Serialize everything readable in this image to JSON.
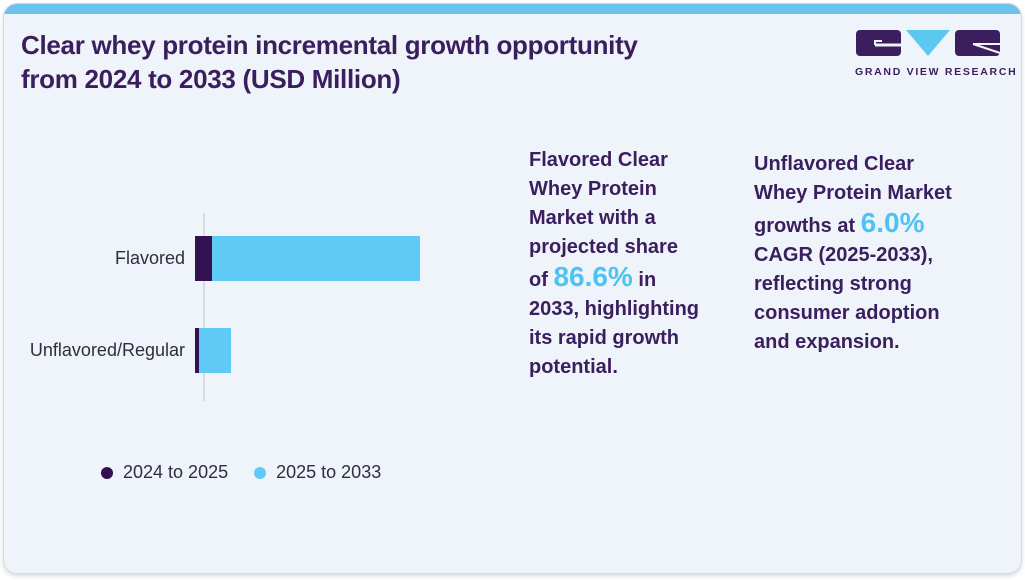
{
  "header": {
    "title_lines": [
      "Clear whey protein incremental growth opportunity",
      "from 2024 to 2033 (USD Million)"
    ]
  },
  "brand": {
    "name": "GRAND VIEW RESEARCH"
  },
  "chart_data": {
    "type": "bar",
    "orientation": "horizontal",
    "stacked": true,
    "title": "Clear whey protein incremental growth opportunity from 2024 to 2033 (USD Million)",
    "categories": [
      "Flavored",
      "Unflavored/Regular"
    ],
    "series": [
      {
        "name": "2024 to 2025",
        "color": "#341150",
        "values": [
          17,
          4
        ]
      },
      {
        "name": "2025 to 2033",
        "color": "#5ecaf5",
        "values": [
          208,
          32
        ]
      }
    ],
    "value_note": "Axis has no tick labels; values are relative bar lengths estimated in px. Flavored approx 86.6% projected share of 2033 market.",
    "xlabel": "",
    "ylabel": "",
    "grid": false,
    "axis_tick_labels_shown": false,
    "legend_position": "bottom-left"
  },
  "callouts": [
    {
      "runs": [
        {
          "text": "Flavored Clear Whey Protein Market with a projected share of "
        },
        {
          "text": "86.6%",
          "accent": true
        },
        {
          "text": " in 2033, highlighting its rapid growth potential."
        }
      ]
    },
    {
      "runs": [
        {
          "text": "Unflavored Clear Whey Protein Market growths at "
        },
        {
          "text": "6.0%",
          "accent": true
        },
        {
          "text": " CAGR (2025-2033), reflecting strong consumer adoption and expansion."
        }
      ]
    }
  ],
  "colors": {
    "card_background": "#eef4f9",
    "top_accent_bar": "#6cc3ea",
    "title_purple": "#3b1e5e",
    "bar_dark_purple": "#341150",
    "bar_light_blue": "#5ecaf5",
    "accent_blue": "#4ec3f3",
    "chart_label": "#2e2e3e",
    "axis_line": "#d9dde1"
  }
}
